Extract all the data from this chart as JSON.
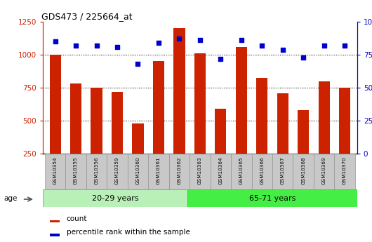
{
  "title": "GDS473 / 225664_at",
  "samples": [
    "GSM10354",
    "GSM10355",
    "GSM10356",
    "GSM10359",
    "GSM10360",
    "GSM10361",
    "GSM10362",
    "GSM10363",
    "GSM10364",
    "GSM10365",
    "GSM10366",
    "GSM10367",
    "GSM10368",
    "GSM10369",
    "GSM10370"
  ],
  "counts": [
    1000,
    780,
    750,
    720,
    480,
    950,
    1200,
    1010,
    590,
    1060,
    825,
    710,
    580,
    800,
    750
  ],
  "percentiles": [
    85,
    82,
    82,
    81,
    68,
    84,
    87,
    86,
    72,
    86,
    82,
    79,
    73,
    82,
    82
  ],
  "group1_label": "20-29 years",
  "group2_label": "65-71 years",
  "group1_count": 7,
  "group2_count": 8,
  "ylim_left": [
    250,
    1250
  ],
  "ylim_right": [
    0,
    100
  ],
  "yticks_left": [
    250,
    500,
    750,
    1000,
    1250
  ],
  "yticks_right": [
    0,
    25,
    50,
    75,
    100
  ],
  "bar_color": "#cc2200",
  "dot_color": "#0000cc",
  "group1_bg": "#b8f0b8",
  "group2_bg": "#44ee44",
  "tick_bg": "#c8c8c8",
  "legend_count_label": "count",
  "legend_pct_label": "percentile rank within the sample"
}
